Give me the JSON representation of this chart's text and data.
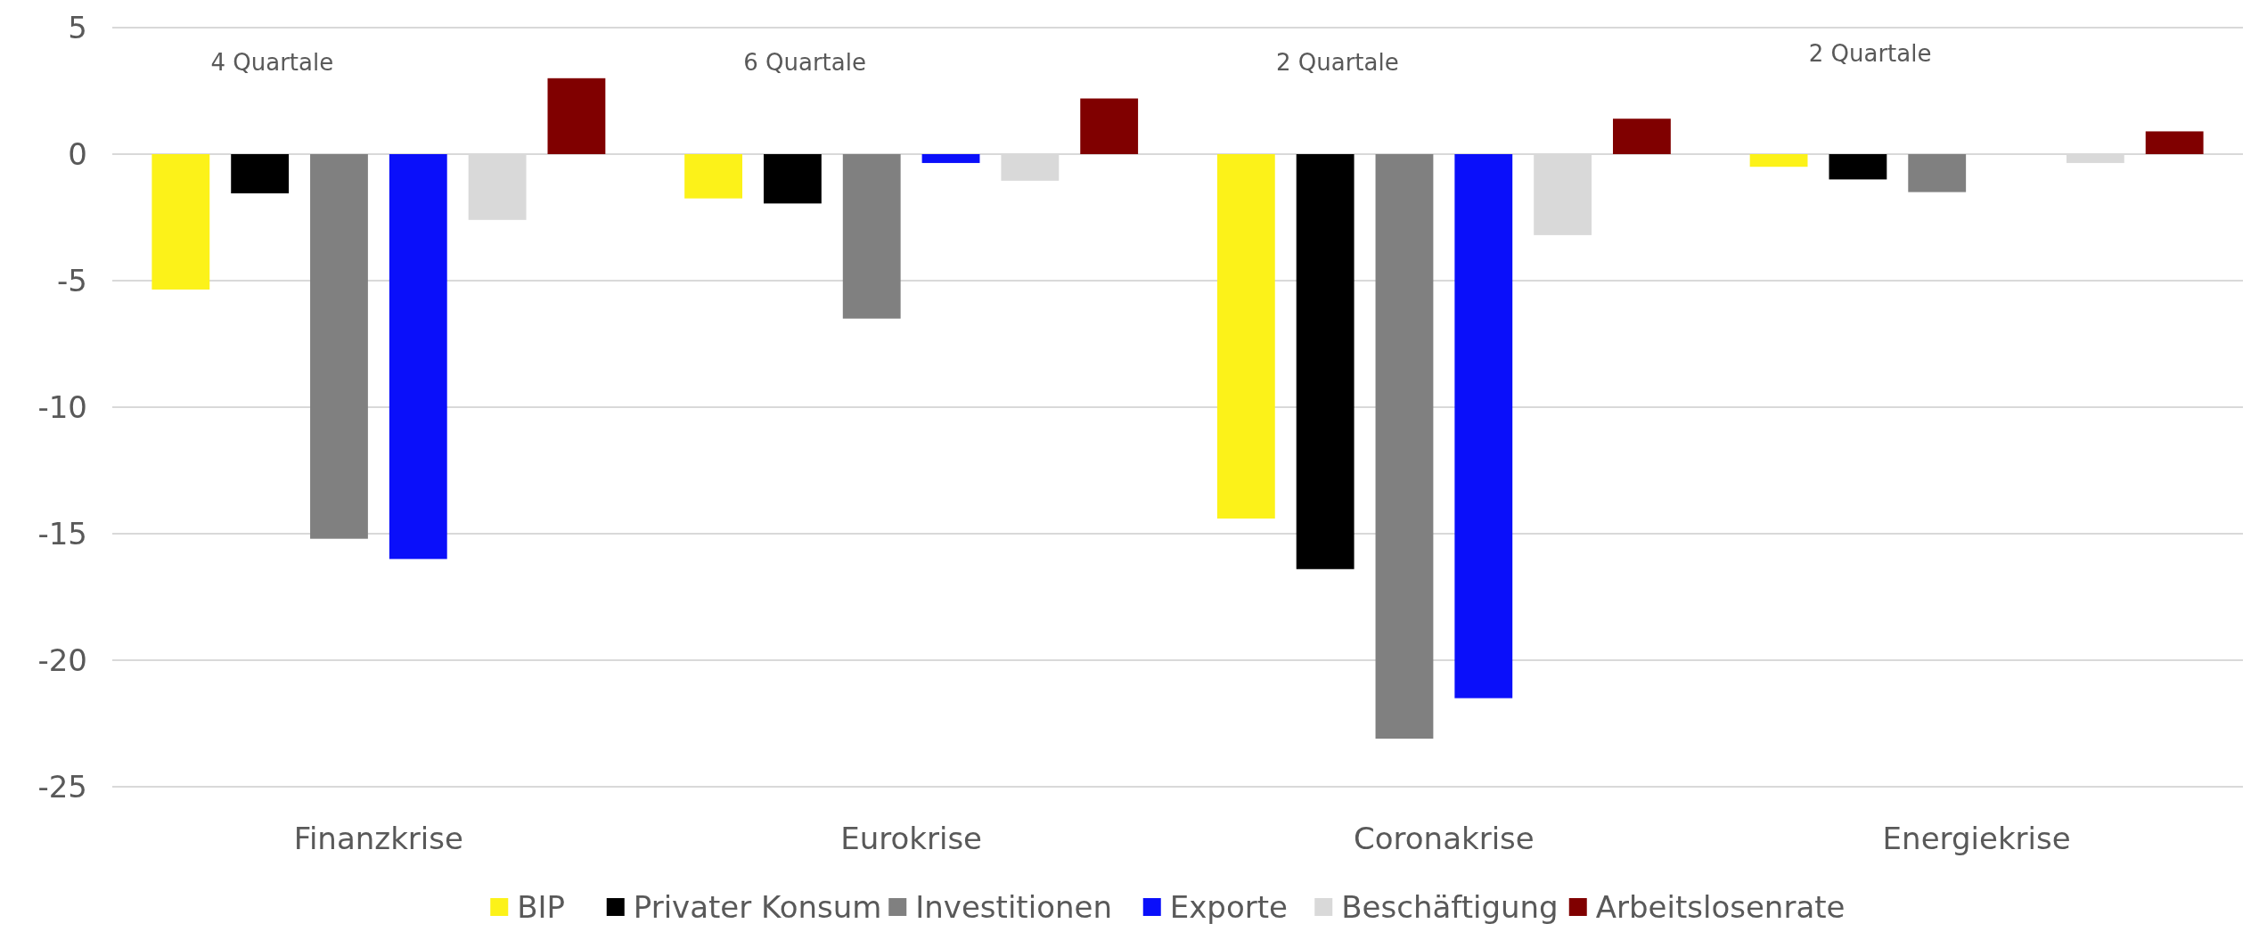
{
  "chart_data": {
    "type": "bar",
    "categories": [
      "Finanzkrise",
      "Eurokrise",
      "Coronakrise",
      "Energiekrise"
    ],
    "series": [
      {
        "name": "BIP",
        "color": "#fcf219",
        "values": [
          -5.35,
          -1.75,
          -14.4,
          -0.5
        ]
      },
      {
        "name": "Privater Konsum",
        "color": "#000000",
        "values": [
          -1.55,
          -1.95,
          -16.4,
          -1.0
        ]
      },
      {
        "name": "Investitionen",
        "color": "#808080",
        "values": [
          -15.2,
          -6.5,
          -23.1,
          -1.5
        ]
      },
      {
        "name": "Exporte",
        "color": "#0a0ffa",
        "values": [
          -16.0,
          -0.35,
          -21.5,
          null
        ]
      },
      {
        "name": "Beschäftigung",
        "color": "#d9d9d9",
        "values": [
          -2.6,
          -1.05,
          -3.2,
          -0.35
        ]
      },
      {
        "name": "Arbeitslosenrate",
        "color": "#800000",
        "values": [
          3.0,
          2.2,
          1.4,
          0.9
        ]
      }
    ],
    "ylim": [
      -25,
      5
    ],
    "yticks": [
      -25,
      -20,
      -15,
      -10,
      -5,
      0,
      5
    ],
    "grid": "y",
    "legend": "bottom",
    "annotations": [
      "4 Quartale",
      "6 Quartale",
      "2 Quartale",
      "2 Quartale"
    ]
  }
}
